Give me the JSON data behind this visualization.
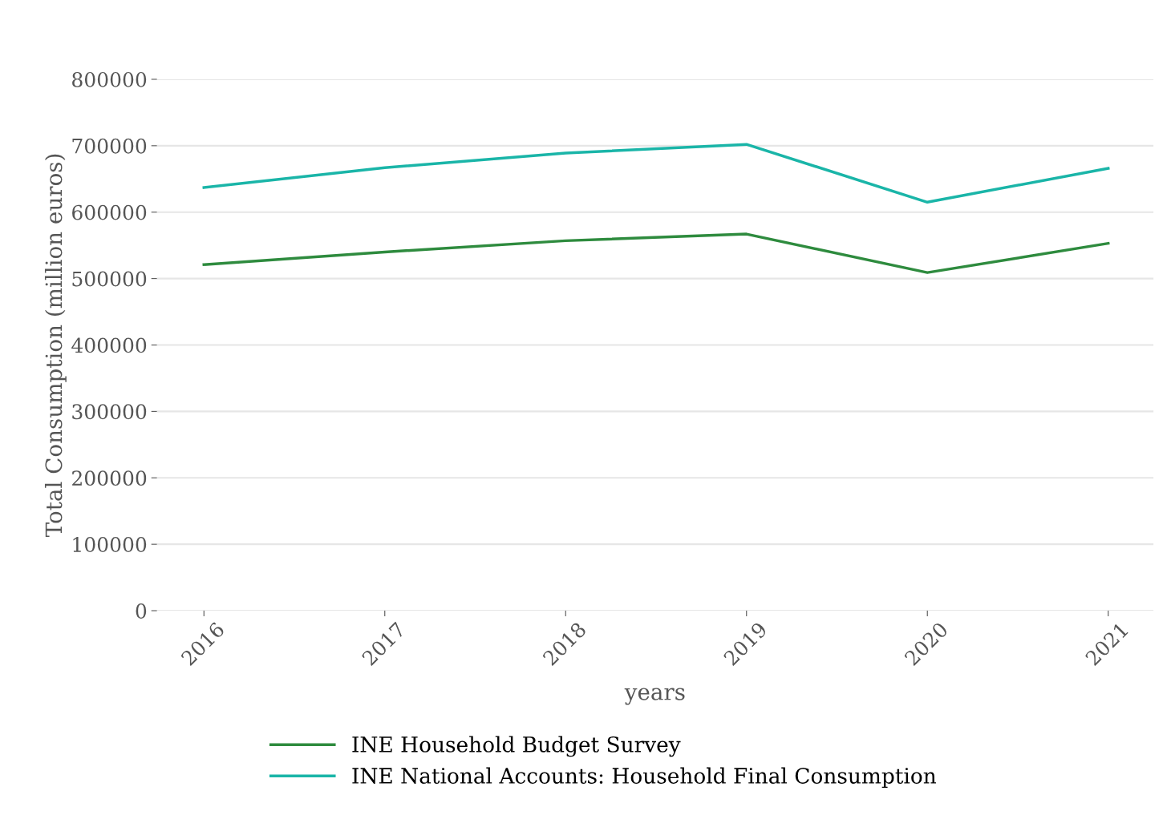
{
  "chart_data": {
    "type": "line",
    "xlabel": "years",
    "ylabel": "Total Consumption (million euros)",
    "categories": [
      "2016",
      "2017",
      "2018",
      "2019",
      "2020",
      "2021"
    ],
    "series": [
      {
        "name": "INE Household Budget Survey",
        "color": "#2e8b3e",
        "values": [
          521000,
          540000,
          557000,
          567000,
          509000,
          553000
        ]
      },
      {
        "name": "INE National Accounts: Household Final Consumption",
        "color": "#1ab5a8",
        "values": [
          637000,
          667000,
          689000,
          702000,
          615000,
          666000
        ]
      }
    ],
    "ylim": [
      0,
      800000
    ],
    "yticks": [
      0,
      100000,
      200000,
      300000,
      400000,
      500000,
      600000,
      700000,
      800000
    ],
    "grid": "y",
    "legend": "bottom",
    "marker": "none",
    "line_style": "solid"
  }
}
